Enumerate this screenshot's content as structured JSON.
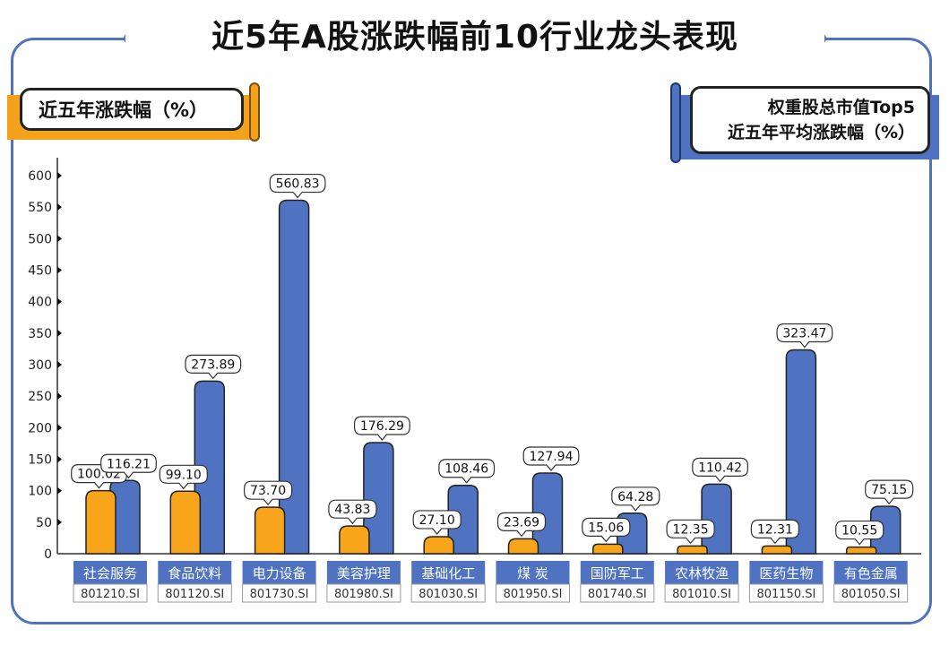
{
  "title": "近5年A股涨跌幅前10行业龙头表现",
  "left_label": "近五年涨跌幅（%）",
  "right_label_line1": "权重股总市值Top5",
  "right_label_line2": "近五年平均涨跌幅（%）",
  "colors": {
    "industry": "#F8A51B",
    "top5": "#4F73C0",
    "frame": "#4F73C0"
  },
  "chart_data": {
    "type": "bar",
    "ylim": [
      0,
      600
    ],
    "yticks": [
      0,
      50,
      100,
      150,
      200,
      250,
      300,
      350,
      400,
      450,
      500,
      550,
      600
    ],
    "categories": [
      "社会服务",
      "食品饮料",
      "电力设备",
      "美容护理",
      "基础化工",
      "煤  炭",
      "国防军工",
      "农林牧渔",
      "医药生物",
      "有色金属"
    ],
    "codes": [
      "801210.SI",
      "801120.SI",
      "801730.SI",
      "801980.SI",
      "801030.SI",
      "801950.SI",
      "801740.SI",
      "801010.SI",
      "801150.SI",
      "801050.SI"
    ],
    "series": [
      {
        "name": "近五年涨跌幅（%）",
        "values": [
          100.02,
          99.1,
          73.7,
          43.83,
          27.1,
          23.69,
          15.06,
          12.35,
          12.31,
          10.55
        ],
        "labels": [
          "100.02",
          "99.10",
          "73.70",
          "43.83",
          "27.10",
          "23.69",
          "15.06",
          "12.35",
          "12.31",
          "10.55"
        ]
      },
      {
        "name": "权重股总市值Top5 近五年平均涨跌幅（%）",
        "values": [
          116.21,
          273.89,
          560.83,
          176.29,
          108.46,
          127.94,
          64.28,
          110.42,
          323.47,
          75.15
        ],
        "labels": [
          "116.21",
          "273.89",
          "560.83",
          "176.29",
          "108.46",
          "127.94",
          "64.28",
          "110.42",
          "323.47",
          "75.15"
        ]
      }
    ]
  }
}
